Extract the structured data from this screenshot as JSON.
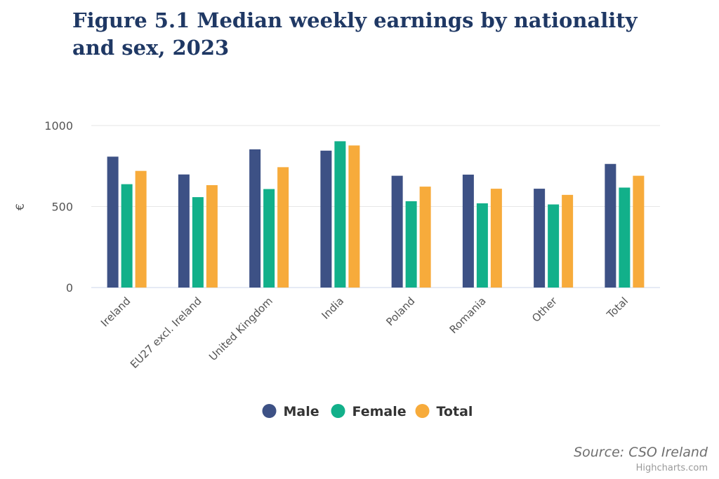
{
  "chart_data": {
    "type": "bar",
    "title": "Figure 5.1 Median weekly earnings by nationality and sex, 2023",
    "ylabel": "€",
    "xlabel": "",
    "ylim": [
      0,
      1000
    ],
    "yticks": [
      0,
      500,
      1000
    ],
    "grid": true,
    "legend_position": "bottom",
    "categories": [
      "Ireland",
      "EU27 excl. Ireland",
      "United Kingdom",
      "India",
      "Poland",
      "Romania",
      "Other",
      "Total"
    ],
    "series": [
      {
        "name": "Male",
        "color": "#3d5185",
        "values": [
          808,
          698,
          853,
          845,
          690,
          697,
          610,
          763
        ]
      },
      {
        "name": "Female",
        "color": "#12b08a",
        "values": [
          638,
          558,
          608,
          903,
          533,
          520,
          513,
          617
        ]
      },
      {
        "name": "Total",
        "color": "#f7ab3b",
        "values": [
          720,
          632,
          743,
          877,
          623,
          610,
          572,
          690
        ]
      }
    ]
  },
  "source": "Source: CSO Ireland",
  "credits": "Highcharts.com"
}
